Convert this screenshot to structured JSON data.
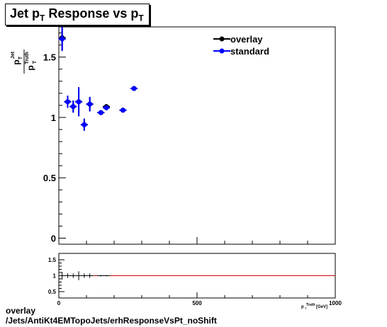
{
  "chart_data": [
    {
      "type": "scatter",
      "title": "Jet p_T Response vs p_T",
      "title_main": "Jet p",
      "title_sub": "T",
      "title_mid": " Response vs p",
      "title_sub2": "T",
      "ylabel": "p_T^Jet / p_T^Truth",
      "ylabel_num": "p",
      "ylabel_num_sup": "Jet",
      "ylabel_num_sub": "T",
      "ylabel_den": "p",
      "ylabel_den_sup": "Truth",
      "ylabel_den_sub": "T",
      "xlim": [
        0,
        1000
      ],
      "ylim": [
        -0.05,
        1.75
      ],
      "yticks": [
        0,
        0.5,
        1,
        1.5
      ],
      "ytick_labels": [
        "0",
        "0.5",
        "1",
        "1.5"
      ],
      "legend_position": "top-right",
      "series": [
        {
          "name": "overlay",
          "color": "#000000",
          "points": [
            {
              "x": 12,
              "y": 1.66,
              "err": 0.1
            },
            {
              "x": 32,
              "y": 1.13,
              "err": 0.05
            },
            {
              "x": 52,
              "y": 1.09,
              "err": 0.05
            },
            {
              "x": 72,
              "y": 1.13,
              "err": 0.12
            },
            {
              "x": 92,
              "y": 0.94,
              "err": 0.05
            },
            {
              "x": 112,
              "y": 1.11,
              "err": 0.06
            },
            {
              "x": 152,
              "y": 1.04,
              "err": 0.02
            },
            {
              "x": 172,
              "y": 1.09,
              "err": 0.02
            },
            {
              "x": 232,
              "y": 1.06,
              "err": 0.02
            },
            {
              "x": 272,
              "y": 1.24,
              "err": 0.01
            }
          ]
        },
        {
          "name": "standard",
          "color": "#0000ff",
          "points": [
            {
              "x": 12,
              "y": 1.65,
              "err": 0.1
            },
            {
              "x": 32,
              "y": 1.13,
              "err": 0.05
            },
            {
              "x": 52,
              "y": 1.09,
              "err": 0.05
            },
            {
              "x": 72,
              "y": 1.13,
              "err": 0.12
            },
            {
              "x": 92,
              "y": 0.94,
              "err": 0.05
            },
            {
              "x": 112,
              "y": 1.11,
              "err": 0.06
            },
            {
              "x": 152,
              "y": 1.04,
              "err": 0.02
            },
            {
              "x": 172,
              "y": 1.08,
              "err": 0.02
            },
            {
              "x": 232,
              "y": 1.06,
              "err": 0.02
            },
            {
              "x": 272,
              "y": 1.24,
              "err": 0.01
            }
          ]
        }
      ]
    },
    {
      "type": "scatter",
      "xlim": [
        0,
        1000
      ],
      "ylim": [
        0.3,
        1.7
      ],
      "yticks": [
        0.5,
        1,
        1.5
      ],
      "ytick_labels": [
        "0.5",
        "1",
        "1.5"
      ],
      "xticks": [
        0,
        500,
        1000
      ],
      "xtick_labels": [
        "0",
        "500",
        "1000"
      ],
      "xlabel": "p_T^Truth [GeV]",
      "xlabel_main": "p",
      "xlabel_sup": "Truth",
      "xlabel_sub": "T",
      "xlabel_unit": " [GeV]",
      "reference_line": {
        "y": 1,
        "color": "#cc0000"
      },
      "ratio": {
        "color": "#000000",
        "points": [
          {
            "x": 12,
            "y": 1.0,
            "err": 0.12
          },
          {
            "x": 32,
            "y": 1.0,
            "err": 0.07
          },
          {
            "x": 52,
            "y": 1.0,
            "err": 0.07
          },
          {
            "x": 72,
            "y": 1.0,
            "err": 0.14
          },
          {
            "x": 92,
            "y": 1.0,
            "err": 0.07
          },
          {
            "x": 112,
            "y": 1.0,
            "err": 0.07
          },
          {
            "x": 152,
            "y": 1.0,
            "err": 0.02
          },
          {
            "x": 172,
            "y": 1.0,
            "err": 0.02
          }
        ]
      }
    }
  ],
  "footer": {
    "line1": "overlay",
    "line2": "/Jets/AntiKt4EMTopoJets/erhResponseVsPt_noShift"
  },
  "colors": {
    "frame": "#000000",
    "background": "#ffffff"
  }
}
